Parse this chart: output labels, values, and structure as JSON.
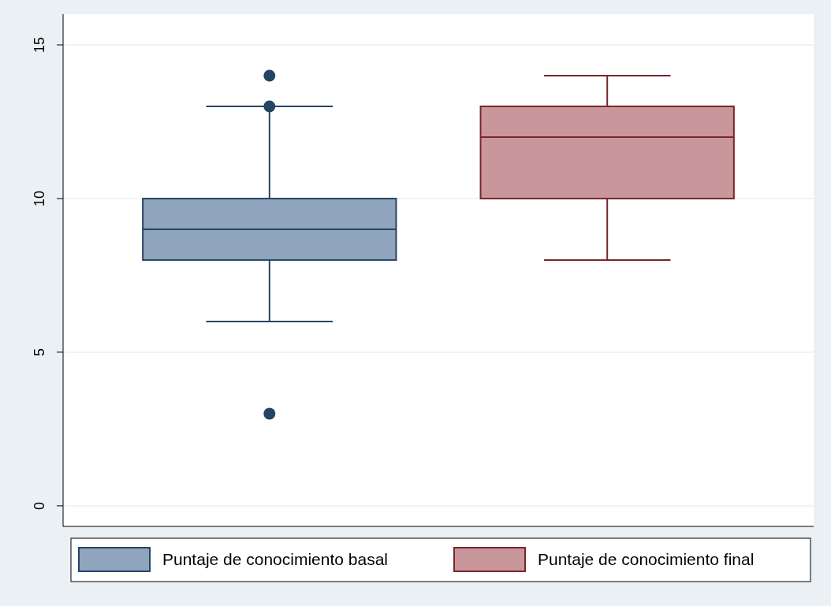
{
  "chart_data": {
    "type": "box",
    "categories": [
      null
    ],
    "series": [
      {
        "name": "Puntaje de conocimiento basal",
        "color": "#8ea5bd",
        "boxes": [
          {
            "low": 6,
            "q1": 8,
            "median": 9,
            "q3": 10,
            "high": 13,
            "outliers": [
              3,
              13,
              14
            ]
          }
        ]
      },
      {
        "name": "Puntaje de conocimiento final",
        "color": "#c9979b",
        "boxes": [
          {
            "low": 8,
            "q1": 10,
            "median": 12,
            "q3": 13,
            "high": 14
          }
        ]
      }
    ],
    "ylim": [
      -0.67,
      16
    ],
    "yticks": [
      0,
      5,
      10,
      15
    ],
    "grid": "y",
    "legend": "bottom",
    "tick_labels": "y"
  }
}
